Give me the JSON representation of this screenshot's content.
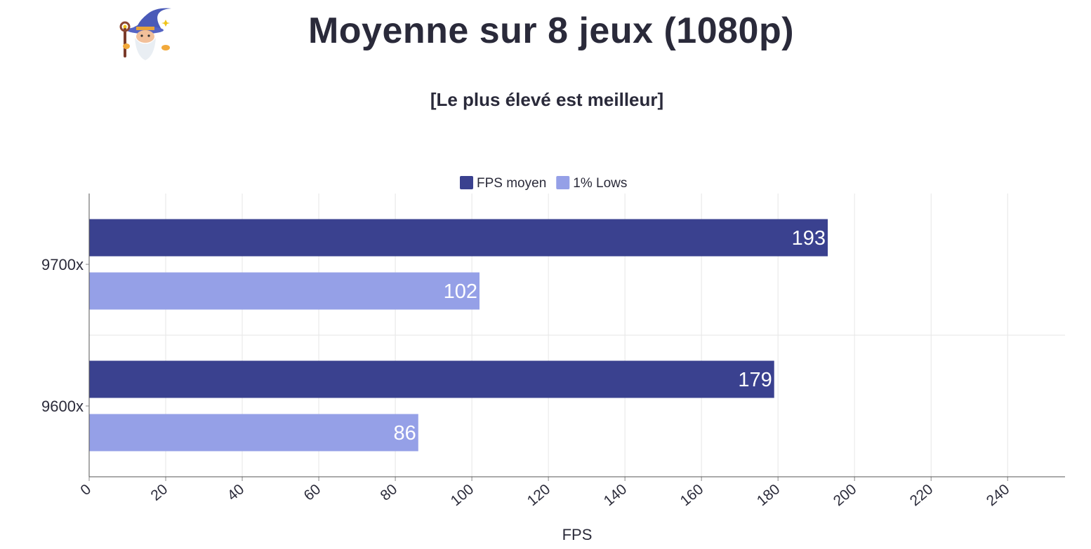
{
  "chart_data": {
    "type": "bar",
    "orientation": "horizontal",
    "title": "Moyenne sur 8 jeux (1080p)",
    "subtitle": "[Le plus élevé est meilleur]",
    "xlabel": "FPS",
    "ylabel": "",
    "xlim": [
      0,
      255
    ],
    "xticks": [
      "0",
      "20",
      "40",
      "60",
      "80",
      "100",
      "120",
      "140",
      "160",
      "180",
      "200",
      "220",
      "240"
    ],
    "categories": [
      "9700x",
      "9600x"
    ],
    "series": [
      {
        "name": "FPS moyen",
        "color": "#3a418f",
        "values": [
          193,
          179
        ]
      },
      {
        "name": "1% Lows",
        "color": "#95a0e7",
        "values": [
          102,
          86
        ]
      }
    ],
    "legend": "top-center",
    "grid": true
  },
  "logo": {
    "icon": "wizard-icon"
  }
}
